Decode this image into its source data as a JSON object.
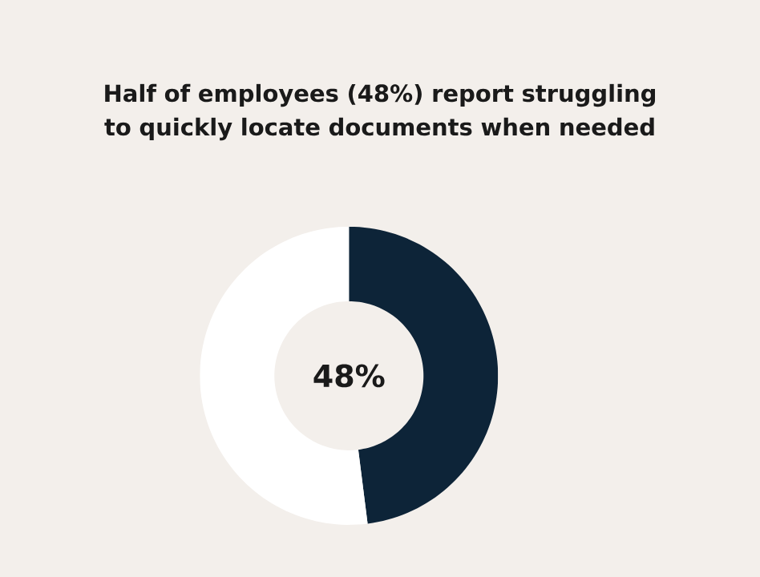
{
  "chart_data": {
    "type": "donut",
    "title": "Half of employees (48%) report struggling to quickly locate documents when needed",
    "categories": [
      null,
      null
    ],
    "values": [
      48,
      52
    ],
    "colors": [
      "#0d2438",
      "#ffffff"
    ],
    "annotations": [
      "48%"
    ]
  }
}
